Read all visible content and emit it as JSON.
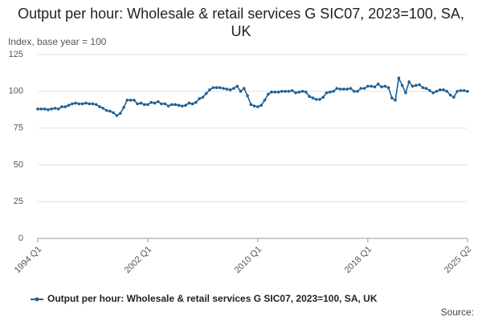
{
  "chart_data": {
    "type": "line",
    "title": "Output per hour: Wholesale & retail services G SIC07, 2023=100, SA, UK",
    "y_label": "Index, base year = 100",
    "source": "Source:",
    "categories": [
      "1994 Q1",
      null,
      null,
      null,
      null,
      null,
      null,
      null,
      null,
      null,
      null,
      null,
      null,
      null,
      null,
      null,
      null,
      null,
      null,
      null,
      null,
      null,
      null,
      null,
      null,
      null,
      null,
      null,
      null,
      null,
      null,
      null,
      "2002 Q1",
      null,
      null,
      null,
      null,
      null,
      null,
      null,
      null,
      null,
      null,
      null,
      null,
      null,
      null,
      null,
      null,
      null,
      null,
      null,
      null,
      null,
      null,
      null,
      null,
      null,
      null,
      null,
      null,
      null,
      null,
      null,
      "2010 Q1",
      null,
      null,
      null,
      null,
      null,
      null,
      null,
      null,
      null,
      null,
      null,
      null,
      null,
      null,
      null,
      null,
      null,
      null,
      null,
      null,
      null,
      null,
      null,
      null,
      null,
      null,
      null,
      null,
      null,
      null,
      null,
      "2018 Q1",
      null,
      null,
      null,
      null,
      null,
      null,
      null,
      null,
      null,
      null,
      null,
      null,
      null,
      null,
      null,
      null,
      null,
      null,
      null,
      null,
      null,
      null,
      null,
      null,
      null,
      null,
      null,
      null,
      "2025 Q2"
    ],
    "series": [
      {
        "name": "Output per hour: Wholesale & retail services G SIC07, 2023=100, SA, UK",
        "color": "#206095",
        "values": [
          88,
          88,
          88,
          87.5,
          88,
          88.5,
          88,
          89.5,
          89.5,
          90.5,
          91.5,
          92,
          91.5,
          91.5,
          92,
          91.5,
          91.5,
          91,
          89.5,
          88.5,
          87,
          86.5,
          85.5,
          83.5,
          85,
          89,
          94,
          94,
          94,
          91.5,
          92,
          91,
          91,
          92.5,
          92,
          93,
          91.5,
          91.5,
          90,
          91,
          91,
          90.5,
          90,
          90.5,
          92,
          91.5,
          92.5,
          95,
          96,
          98.5,
          101,
          102.5,
          102.5,
          102.5,
          102,
          101.5,
          101,
          102,
          103.5,
          100,
          102,
          97,
          91,
          90,
          89.5,
          90.5,
          94,
          98,
          99.5,
          99.5,
          99.5,
          100,
          100,
          100,
          100.5,
          99,
          99.5,
          100,
          99.5,
          96.5,
          95.5,
          94.5,
          94.5,
          96,
          99,
          99.5,
          100,
          102,
          101.5,
          101.5,
          101.5,
          102,
          100,
          100,
          102,
          102,
          103.5,
          103.5,
          103,
          105,
          103,
          103.5,
          102.5,
          95.5,
          94,
          109,
          104,
          99,
          106.5,
          103.5,
          104,
          104.5,
          102.5,
          102,
          100.5,
          99,
          100,
          101,
          101,
          100,
          97.5,
          96,
          100,
          100.5,
          100.5,
          100
        ]
      }
    ],
    "ylim": [
      0,
      125
    ],
    "yticks": [
      0,
      25,
      50,
      75,
      100,
      125
    ],
    "grid": true
  }
}
